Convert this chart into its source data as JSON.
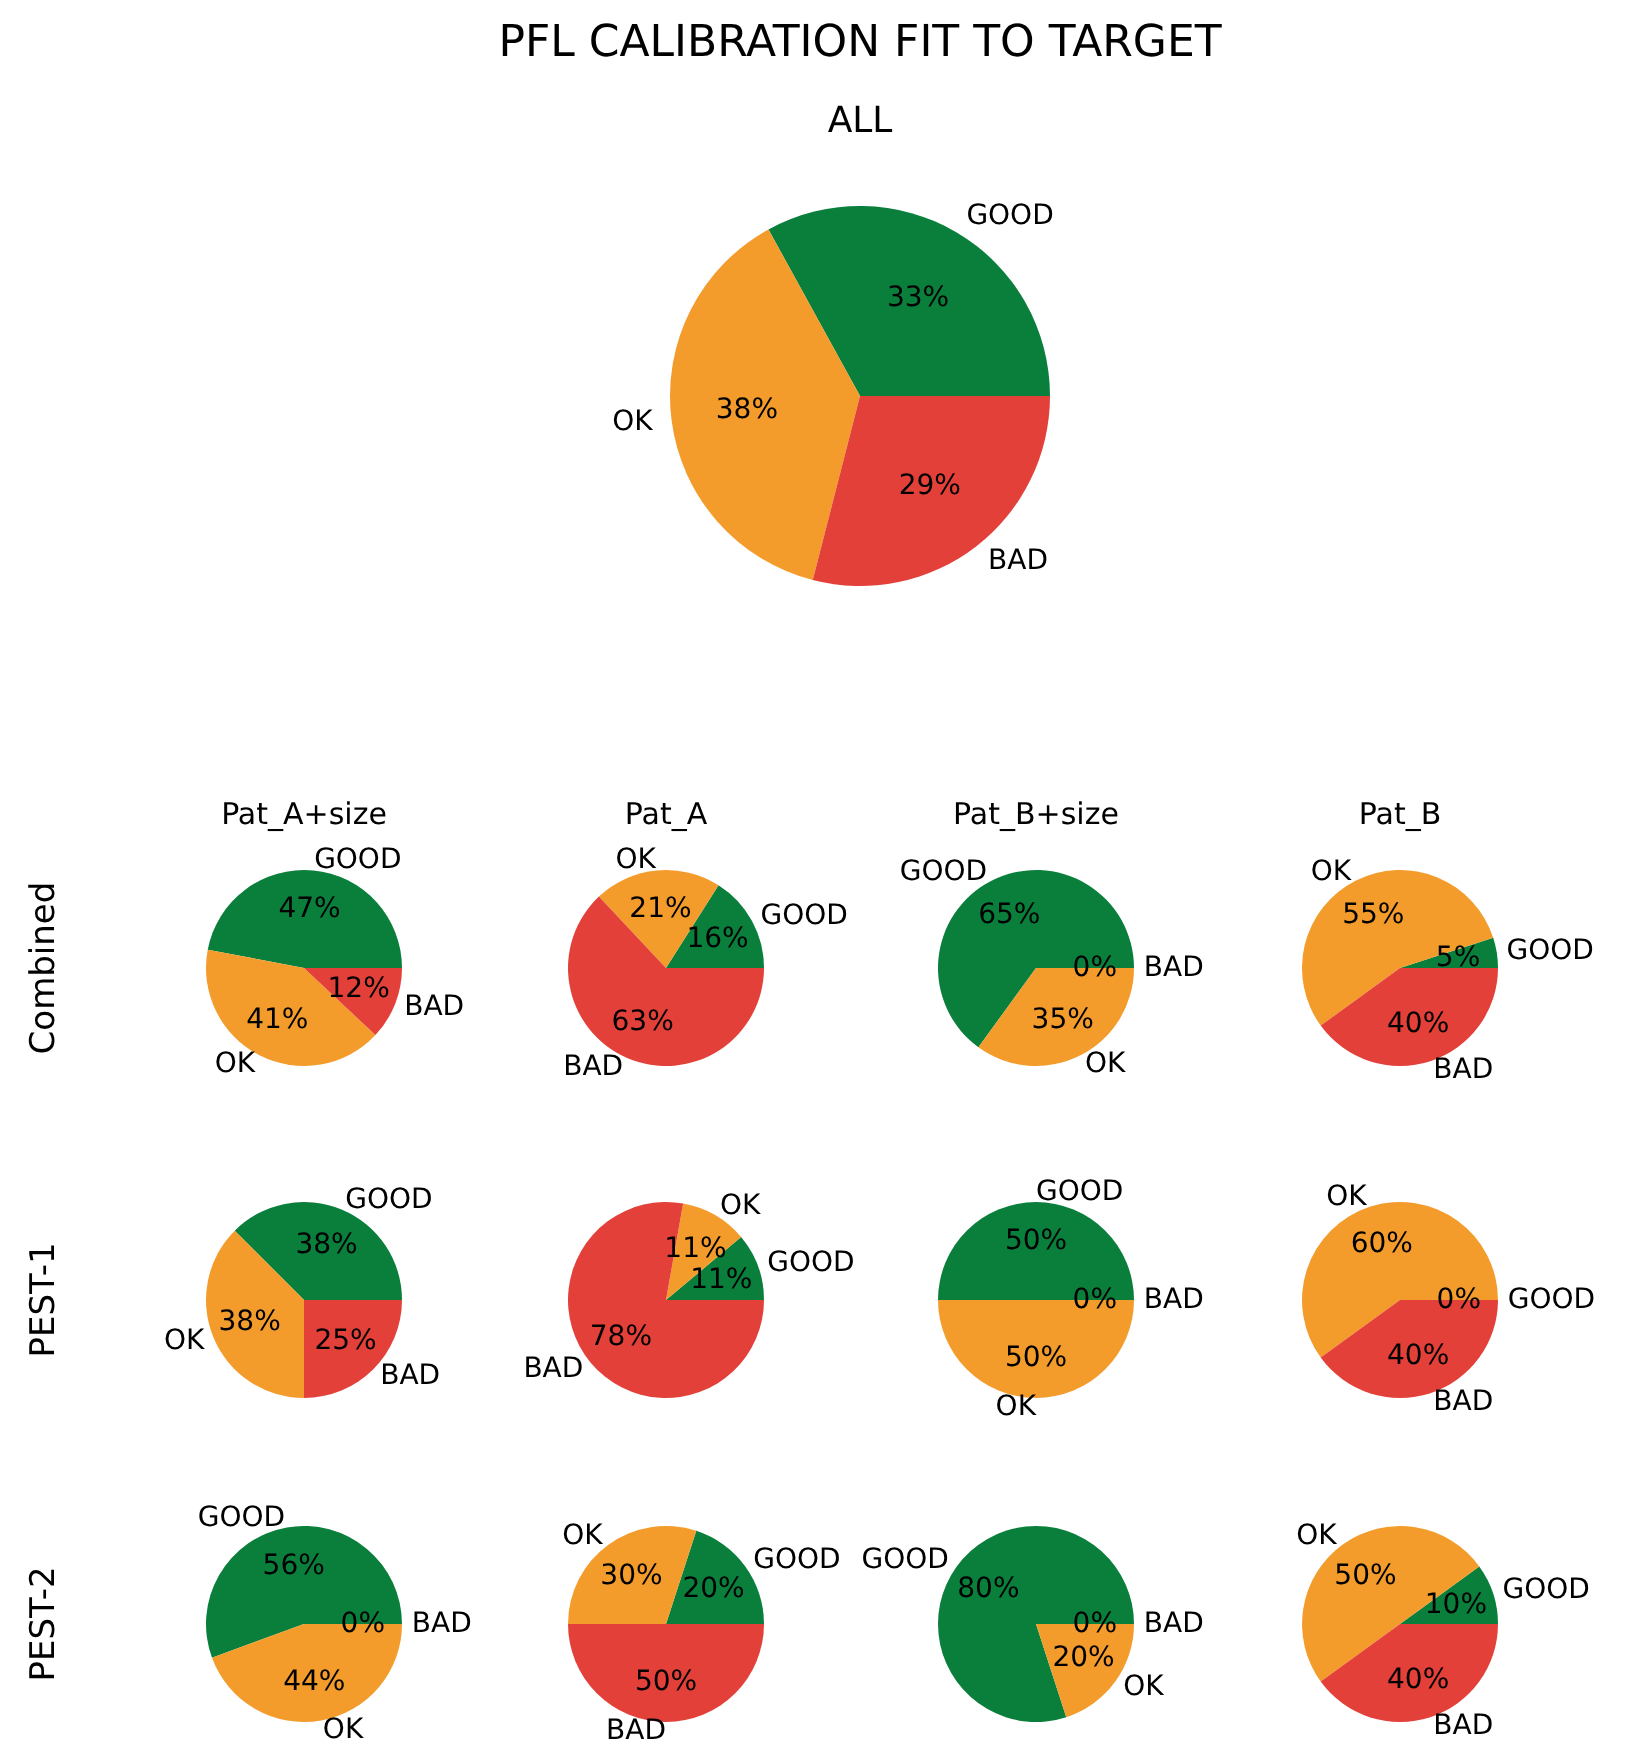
{
  "chart_data": [
    {
      "type": "pie",
      "title": "PFL CALIBRATION FIT TO TARGET",
      "subtitle": "ALL",
      "categories": [
        "GOOD",
        "OK",
        "BAD"
      ],
      "values": [
        33,
        38,
        29
      ],
      "value_labels": [
        "33%",
        "38%",
        "29%"
      ],
      "colors": [
        "#0a7f3c",
        "#f39c2c",
        "#e3403a"
      ]
    },
    {
      "type": "pie",
      "title": "Pat_A+size",
      "ylabel": "Combined",
      "categories": [
        "GOOD",
        "OK",
        "BAD"
      ],
      "values": [
        47,
        41,
        12
      ],
      "value_labels": [
        "47%",
        "41%",
        "12%"
      ],
      "colors": [
        "#0a7f3c",
        "#f39c2c",
        "#e3403a"
      ]
    },
    {
      "type": "pie",
      "title": "Pat_A",
      "categories": [
        "GOOD",
        "OK",
        "BAD"
      ],
      "values": [
        16,
        21,
        63
      ],
      "value_labels": [
        "16%",
        "21%",
        "63%"
      ],
      "colors": [
        "#0a7f3c",
        "#f39c2c",
        "#e3403a"
      ]
    },
    {
      "type": "pie",
      "title": "Pat_B+size",
      "categories": [
        "GOOD",
        "OK",
        "BAD"
      ],
      "values": [
        65,
        35,
        0
      ],
      "value_labels": [
        "65%",
        "35%",
        "0%"
      ],
      "colors": [
        "#0a7f3c",
        "#f39c2c",
        "#e3403a"
      ]
    },
    {
      "type": "pie",
      "title": "Pat_B",
      "categories": [
        "GOOD",
        "OK",
        "BAD"
      ],
      "values": [
        5,
        55,
        40
      ],
      "value_labels": [
        "5%",
        "55%",
        "40%"
      ],
      "colors": [
        "#0a7f3c",
        "#f39c2c",
        "#e3403a"
      ]
    },
    {
      "type": "pie",
      "ylabel": "PEST-1",
      "categories": [
        "GOOD",
        "OK",
        "BAD"
      ],
      "values": [
        37.5,
        37.5,
        25
      ],
      "value_labels": [
        "38%",
        "38%",
        "25%"
      ],
      "colors": [
        "#0a7f3c",
        "#f39c2c",
        "#e3403a"
      ]
    },
    {
      "type": "pie",
      "categories": [
        "GOOD",
        "OK",
        "BAD"
      ],
      "values": [
        11.1,
        11.1,
        77.8
      ],
      "value_labels": [
        "11%",
        "11%",
        "78%"
      ],
      "colors": [
        "#0a7f3c",
        "#f39c2c",
        "#e3403a"
      ]
    },
    {
      "type": "pie",
      "categories": [
        "GOOD",
        "OK",
        "BAD"
      ],
      "values": [
        50,
        50,
        0
      ],
      "value_labels": [
        "50%",
        "50%",
        "0%"
      ],
      "colors": [
        "#0a7f3c",
        "#f39c2c",
        "#e3403a"
      ]
    },
    {
      "type": "pie",
      "categories": [
        "GOOD",
        "OK",
        "BAD"
      ],
      "values": [
        0,
        60,
        40
      ],
      "value_labels": [
        "0%",
        "60%",
        "40%"
      ],
      "colors": [
        "#0a7f3c",
        "#f39c2c",
        "#e3403a"
      ]
    },
    {
      "type": "pie",
      "ylabel": "PEST-2",
      "categories": [
        "GOOD",
        "OK",
        "BAD"
      ],
      "values": [
        55.6,
        44.4,
        0
      ],
      "value_labels": [
        "56%",
        "44%",
        "0%"
      ],
      "colors": [
        "#0a7f3c",
        "#f39c2c",
        "#e3403a"
      ]
    },
    {
      "type": "pie",
      "categories": [
        "GOOD",
        "OK",
        "BAD"
      ],
      "values": [
        20,
        30,
        50
      ],
      "value_labels": [
        "20%",
        "30%",
        "50%"
      ],
      "colors": [
        "#0a7f3c",
        "#f39c2c",
        "#e3403a"
      ]
    },
    {
      "type": "pie",
      "categories": [
        "GOOD",
        "OK",
        "BAD"
      ],
      "values": [
        80,
        20,
        0
      ],
      "value_labels": [
        "80%",
        "20%",
        "0%"
      ],
      "colors": [
        "#0a7f3c",
        "#f39c2c",
        "#e3403a"
      ]
    },
    {
      "type": "pie",
      "categories": [
        "GOOD",
        "OK",
        "BAD"
      ],
      "values": [
        10,
        50,
        40
      ],
      "value_labels": [
        "10%",
        "50%",
        "40%"
      ],
      "colors": [
        "#0a7f3c",
        "#f39c2c",
        "#e3403a"
      ]
    }
  ]
}
